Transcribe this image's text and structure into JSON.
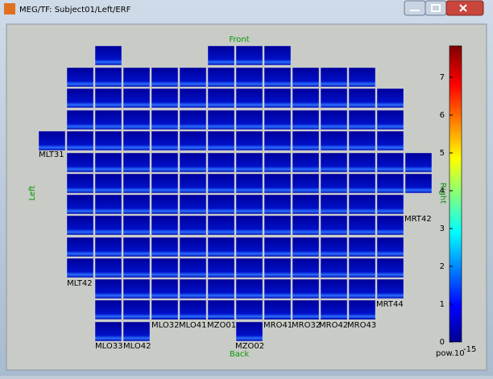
{
  "window": {
    "title": "MEG/TF: Subject01/Left/ERF"
  },
  "figure": {
    "front": "Front",
    "back": "Back",
    "left": "Left",
    "right": "Right",
    "sensors": [
      "MLT31",
      "MRT42",
      "MLT42",
      "MRT44",
      "MLO33",
      "MLO42",
      "MLO32",
      "MLO41",
      "MZO01",
      "MRO41",
      "MRO32",
      "MRO42",
      "MRO43",
      "MZO02"
    ]
  },
  "chart_data": {
    "type": "colorbar",
    "ylim": [
      0,
      7.83
    ],
    "yticks": [
      0,
      1,
      2,
      3,
      4,
      5,
      6,
      7
    ],
    "unit": "pow.10",
    "unit_exponent": "-15"
  }
}
